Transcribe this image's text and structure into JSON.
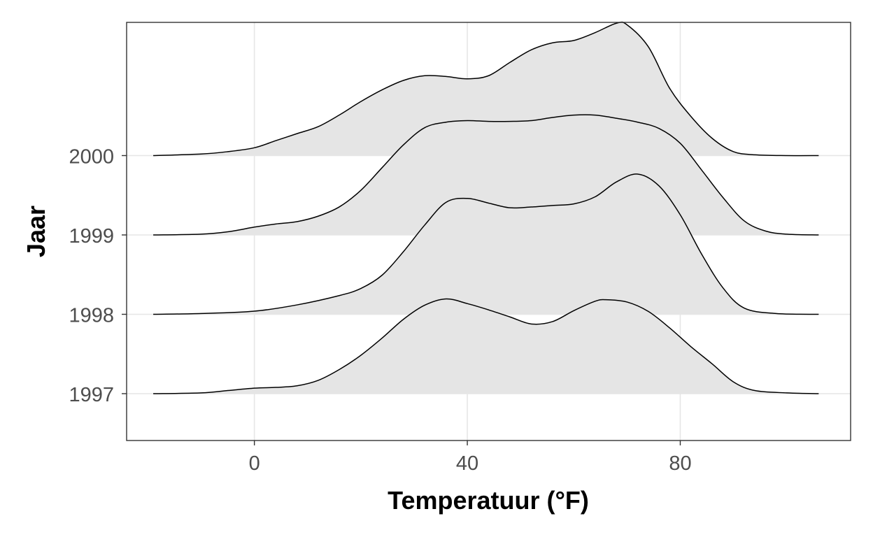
{
  "chart_data": {
    "type": "ridgeline",
    "title": "",
    "xlabel": "Temperatuur (°F)",
    "ylabel": "Jaar",
    "x_ticks": [
      0,
      40,
      80
    ],
    "x_tick_labels": [
      "0",
      "40",
      "80"
    ],
    "xlim": [
      -24,
      112
    ],
    "grid": true,
    "fill_color": "#e5e5e5",
    "line_color": "#000000",
    "series": [
      {
        "name": "1997",
        "x": [
          -19,
          -10,
          -5,
          0,
          4,
          8,
          12,
          16,
          20,
          24,
          28,
          32,
          36,
          40,
          44,
          48,
          52,
          56,
          60,
          64,
          66,
          70,
          74,
          78,
          82,
          86,
          90,
          94,
          100,
          106
        ],
        "density": [
          0,
          0.01,
          0.04,
          0.07,
          0.08,
          0.1,
          0.17,
          0.31,
          0.49,
          0.71,
          0.95,
          1.13,
          1.21,
          1.15,
          1.07,
          0.98,
          0.89,
          0.92,
          1.06,
          1.18,
          1.2,
          1.17,
          1.05,
          0.84,
          0.6,
          0.38,
          0.15,
          0.04,
          0.01,
          0
        ]
      },
      {
        "name": "1998",
        "x": [
          -19,
          -10,
          0,
          8,
          16,
          20,
          24,
          28,
          32,
          36,
          40,
          44,
          48,
          52,
          56,
          60,
          64,
          68,
          72,
          76,
          80,
          84,
          88,
          92,
          98,
          106
        ],
        "density": [
          0,
          0.01,
          0.04,
          0.12,
          0.24,
          0.33,
          0.5,
          0.8,
          1.14,
          1.43,
          1.48,
          1.42,
          1.36,
          1.37,
          1.39,
          1.41,
          1.5,
          1.69,
          1.79,
          1.64,
          1.27,
          0.77,
          0.34,
          0.08,
          0.01,
          0
        ]
      },
      {
        "name": "1999",
        "x": [
          -19,
          -10,
          -5,
          0,
          4,
          8,
          12,
          16,
          20,
          24,
          28,
          32,
          36,
          40,
          44,
          48,
          52,
          56,
          60,
          64,
          68,
          72,
          76,
          80,
          84,
          88,
          92,
          96,
          100,
          106
        ],
        "density": [
          0,
          0.01,
          0.04,
          0.1,
          0.14,
          0.17,
          0.24,
          0.36,
          0.57,
          0.86,
          1.15,
          1.37,
          1.44,
          1.46,
          1.45,
          1.45,
          1.46,
          1.5,
          1.53,
          1.53,
          1.49,
          1.44,
          1.36,
          1.17,
          0.83,
          0.48,
          0.18,
          0.05,
          0.01,
          0
        ]
      },
      {
        "name": "2000",
        "x": [
          -19,
          -10,
          -5,
          0,
          4,
          8,
          12,
          16,
          20,
          24,
          28,
          32,
          36,
          40,
          44,
          48,
          52,
          56,
          60,
          64,
          68,
          70,
          74,
          78,
          82,
          86,
          90,
          94,
          100,
          106
        ],
        "density": [
          0,
          0.02,
          0.05,
          0.1,
          0.19,
          0.28,
          0.37,
          0.52,
          0.69,
          0.84,
          0.96,
          1.02,
          1.01,
          0.98,
          1.02,
          1.19,
          1.35,
          1.44,
          1.47,
          1.57,
          1.69,
          1.67,
          1.39,
          0.86,
          0.5,
          0.22,
          0.05,
          0.01,
          0,
          0
        ]
      }
    ]
  }
}
